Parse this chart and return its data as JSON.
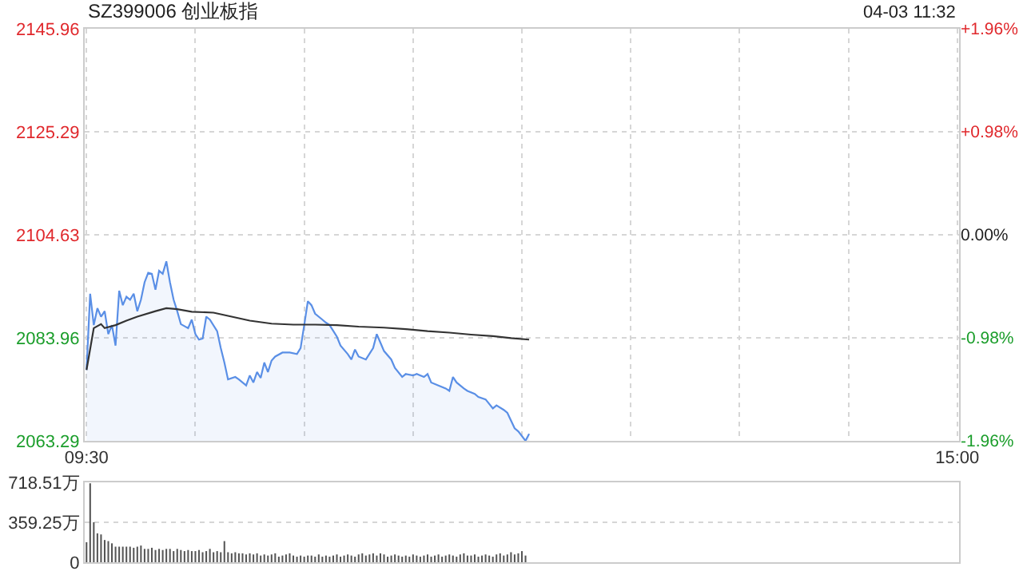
{
  "chart_data": [
    {
      "type": "area",
      "title": "SZ399006 创业板指",
      "annotations": [
        "04-03 11:32"
      ],
      "categories": [
        "09:30",
        null,
        null,
        null,
        null,
        null,
        null,
        null,
        null,
        null,
        null,
        null,
        null,
        null,
        null,
        null,
        null,
        null,
        null,
        null,
        null,
        null,
        null,
        null,
        null,
        null,
        null,
        null,
        null,
        null,
        null,
        null,
        null,
        null,
        null,
        null,
        null,
        null,
        null,
        null,
        null,
        null,
        null,
        null,
        null,
        null,
        null,
        null,
        null,
        null,
        null,
        null,
        null,
        null,
        null,
        null,
        null,
        null,
        null,
        null,
        null,
        null,
        null,
        null,
        null,
        null,
        null,
        null,
        null,
        null,
        null,
        null,
        null,
        null,
        null,
        null,
        null,
        null,
        null,
        null,
        null,
        null,
        null,
        null,
        null,
        null,
        null,
        null,
        null,
        null,
        null,
        null,
        null,
        null,
        null,
        null,
        null,
        null,
        null,
        null,
        null,
        null,
        null,
        null,
        null,
        null,
        null,
        null,
        null,
        null,
        null,
        null,
        null,
        null,
        null,
        null,
        null,
        null,
        null,
        null,
        null,
        null,
        null,
        null,
        null,
        null,
        null,
        null,
        null,
        null,
        null,
        null,
        null,
        null,
        null,
        null,
        null,
        null,
        null,
        null,
        null,
        null,
        null,
        null,
        null,
        null,
        null,
        null,
        null,
        null,
        null,
        null,
        null,
        null,
        null,
        null,
        null,
        null,
        null,
        null,
        null,
        null,
        null,
        null,
        null,
        null,
        null,
        null,
        null,
        null,
        null,
        null,
        null,
        null,
        null,
        null,
        null,
        null,
        null,
        null,
        null,
        null,
        null,
        null,
        null,
        null,
        null,
        null,
        null,
        null,
        null,
        null,
        null,
        null,
        null,
        null,
        null,
        null,
        null,
        null,
        null,
        null,
        null,
        null,
        null,
        null,
        null,
        null,
        null,
        null,
        null,
        null,
        null,
        null,
        null,
        null,
        null,
        null,
        null,
        null,
        null,
        null,
        null,
        null,
        null,
        null,
        null,
        null,
        null,
        null,
        null,
        null,
        null,
        null,
        null,
        null,
        null,
        null,
        null,
        null,
        "15:00"
      ],
      "series": [
        {
          "color": "#5a8fe6",
          "values": [
            2077.5,
            2092.8,
            2086.5,
            2089.9,
            2088.2,
            2089.3,
            2084.7,
            2086.5,
            2082.4,
            2093.4,
            2090.5,
            2092.2,
            2091.6,
            2092.8,
            2089.3,
            2091.6,
            2095.1,
            2097.0,
            2096.8,
            2093.6,
            2097.4,
            2096.8,
            2099.3,
            2095.1,
            2091.6,
            2089.3,
            2086.7,
            null,
            2085.9,
            2087.6,
            2084.7,
            2083.6,
            2083.8,
            2088.2,
            2087.6,
            null,
            2085.3,
            2081.9,
            2079.0,
            2075.6,
            null,
            2076.1,
            2075.6,
            null,
            2074.4,
            2076.4,
            2075.0,
            2077.1,
            2075.9,
            2079.0,
            2077.1,
            2079.4,
            2080.2,
            null,
            2081.0,
            null,
            2081.0,
            null,
            2080.7,
            2081.9,
            2086.5,
            2091.3,
            2090.5,
            2088.8,
            null,
            2087.6,
            2087.0,
            2086.5,
            null,
            2084.2,
            2082.4,
            null,
            2080.7,
            2079.6,
            2081.6,
            2080.2,
            null,
            2079.6,
            null,
            2081.9,
            2084.7,
            2083.0,
            2081.3,
            null,
            2079.6,
            2077.9,
            null,
            2076.1,
            2076.7,
            null,
            2076.4,
            2076.7,
            null,
            2076.1,
            2076.7,
            2075.0,
            null,
            2074.4,
            null,
            2073.8,
            2073.3,
            2076.1,
            2075.0,
            null,
            2073.8,
            2073.3,
            null,
            2072.7,
            2072.1,
            null,
            2071.6,
            null,
            2069.8,
            2070.4,
            null,
            2069.5,
            2068.9,
            null,
            2065.8,
            2065.2,
            null,
            2063.3,
            2064.7,
            null,
            null,
            null,
            null,
            null,
            null,
            null,
            null,
            null,
            null,
            null,
            null,
            null,
            null,
            null,
            null,
            null,
            null,
            null,
            null,
            null,
            null,
            null,
            null,
            null,
            null,
            null,
            null,
            null,
            null,
            null,
            null,
            null,
            null,
            null,
            null,
            null,
            null,
            null,
            null,
            null,
            null,
            null,
            null,
            null,
            null,
            null,
            null,
            null,
            null,
            null,
            null,
            null,
            null,
            null,
            null,
            null,
            null,
            null,
            null,
            null,
            null,
            null,
            null,
            null,
            null,
            null,
            null,
            null,
            null,
            null,
            null,
            null,
            null,
            null,
            null,
            null,
            null,
            null,
            null,
            null,
            null,
            null,
            null,
            null,
            null,
            null,
            null,
            null,
            null,
            null,
            null,
            null,
            null,
            null,
            null,
            null,
            null,
            null,
            null,
            null,
            null,
            null,
            null,
            null,
            null,
            null,
            null,
            null,
            null,
            null,
            null,
            null,
            null,
            null,
            null,
            null,
            null
          ]
        },
        {
          "type": "line",
          "color": "#333333",
          "values": [
            2077.5,
            null,
            2085.9,
            null,
            2086.7,
            2085.9,
            null,
            null,
            2086.5,
            null,
            null,
            2087.4,
            null,
            null,
            2088.2,
            null,
            null,
            null,
            null,
            2089.3,
            null,
            null,
            2089.9,
            null,
            null,
            2089.7,
            null,
            null,
            null,
            2089.2,
            null,
            null,
            null,
            null,
            null,
            2089.0,
            null,
            null,
            null,
            null,
            2088.2,
            null,
            null,
            null,
            null,
            2087.4,
            null,
            null,
            null,
            null,
            null,
            2086.8,
            null,
            null,
            null,
            null,
            null,
            2086.6,
            null,
            null,
            null,
            null,
            null,
            2086.6,
            null,
            null,
            null,
            null,
            null,
            2086.5,
            null,
            null,
            null,
            null,
            null,
            2086.2,
            null,
            null,
            null,
            null,
            null,
            null,
            2086.0,
            null,
            null,
            null,
            null,
            null,
            2085.7,
            null,
            null,
            null,
            null,
            null,
            2085.3,
            null,
            null,
            null,
            null,
            null,
            2085.0,
            null,
            null,
            null,
            null,
            null,
            2084.6,
            null,
            null,
            null,
            null,
            null,
            2084.3,
            null,
            null,
            null,
            null,
            2083.9,
            null,
            null,
            null,
            null,
            2083.6,
            null,
            null,
            null,
            null,
            null,
            null,
            null,
            null,
            null,
            null,
            null,
            null,
            null,
            null,
            null,
            null,
            null,
            null,
            null,
            null,
            null,
            null,
            null,
            null,
            null,
            null,
            null,
            null,
            null,
            null,
            null,
            null,
            null,
            null,
            null,
            null,
            null,
            null,
            null,
            null,
            null,
            null,
            null,
            null,
            null,
            null,
            null,
            null,
            null,
            null,
            null,
            null,
            null,
            null,
            null,
            null,
            null,
            null,
            null,
            null,
            null,
            null,
            null,
            null,
            null,
            null,
            null,
            null,
            null,
            null,
            null,
            null,
            null,
            null,
            null,
            null,
            null,
            null,
            null,
            null,
            null,
            null,
            null,
            null,
            null,
            null,
            null,
            null,
            null,
            null,
            null,
            null,
            null,
            null,
            null,
            null,
            null,
            null,
            null,
            null,
            null,
            null,
            null,
            null,
            null,
            null,
            null,
            null,
            null,
            null,
            null,
            null,
            null,
            null,
            null,
            null,
            null,
            null
          ]
        }
      ],
      "ylim": [
        2063.29,
        2145.96
      ],
      "yticks": [
        2063.29,
        2083.96,
        2104.63,
        2125.29,
        2145.96
      ],
      "y2lim": [
        -1.96,
        1.96
      ],
      "y2ticks": [
        {
          "value": -1.96,
          "label": "-1.96%"
        },
        {
          "value": -0.98,
          "label": "-0.98%"
        },
        {
          "value": 0,
          "label": "0.00%"
        },
        {
          "value": 0.98,
          "label": "+0.98%"
        },
        {
          "value": 1.96,
          "label": "+1.96%"
        }
      ],
      "grid": true,
      "line_style": "solid"
    },
    {
      "type": "bar",
      "tick_labels": "y",
      "color": "#555555",
      "categories": [
        null,
        null,
        null,
        null,
        null,
        null,
        null,
        null,
        null,
        null,
        null,
        null,
        null,
        null,
        null,
        null,
        null,
        null,
        null,
        null,
        null,
        null,
        null,
        null,
        null,
        null,
        null,
        null,
        null,
        null,
        null,
        null,
        null,
        null,
        null,
        null,
        null,
        null,
        null,
        null,
        null,
        null,
        null,
        null,
        null,
        null,
        null,
        null,
        null,
        null,
        null,
        null,
        null,
        null,
        null,
        null,
        null,
        null,
        null,
        null,
        null,
        null,
        null,
        null,
        null,
        null,
        null,
        null,
        null,
        null,
        null,
        null,
        null,
        null,
        null,
        null,
        null,
        null,
        null,
        null,
        null,
        null,
        null,
        null,
        null,
        null,
        null,
        null,
        null,
        null,
        null,
        null,
        null,
        null,
        null,
        null,
        null,
        null,
        null,
        null,
        null,
        null,
        null,
        null,
        null,
        null,
        null,
        null,
        null,
        null,
        null,
        null,
        null,
        null,
        null,
        null,
        null,
        null,
        null,
        null,
        null,
        null,
        null,
        null,
        null,
        null,
        null,
        null,
        null,
        null,
        null,
        null,
        null,
        null,
        null,
        null,
        null,
        null,
        null,
        null,
        null,
        null,
        null,
        null,
        null,
        null,
        null,
        null,
        null,
        null,
        null,
        null,
        null,
        null,
        null,
        null,
        null,
        null,
        null,
        null,
        null,
        null,
        null,
        null,
        null,
        null,
        null,
        null,
        null,
        null,
        null,
        null,
        null,
        null,
        null,
        null,
        null,
        null,
        null,
        null,
        null,
        null,
        null,
        null,
        null,
        null,
        null,
        null,
        null,
        null,
        null,
        null,
        null,
        null,
        null,
        null,
        null,
        null,
        null,
        null,
        null,
        null,
        null,
        null,
        null,
        null,
        null,
        null,
        null,
        null,
        null,
        null,
        null,
        null,
        null,
        null,
        null,
        null,
        null,
        null,
        null,
        null,
        null,
        null,
        null,
        null,
        null,
        null,
        null,
        null,
        null,
        null,
        null,
        null,
        null,
        null,
        null,
        null,
        null,
        null,
        null
      ],
      "values": [
        180,
        710,
        360,
        260,
        250,
        200,
        190,
        170,
        140,
        140,
        140,
        140,
        140,
        130,
        140,
        150,
        120,
        120,
        130,
        110,
        120,
        110,
        120,
        120,
        100,
        120,
        110,
        100,
        110,
        100,
        100,
        110,
        90,
        100,
        120,
        90,
        100,
        90,
        190,
        90,
        80,
        90,
        80,
        80,
        70,
        80,
        70,
        80,
        60,
        70,
        60,
        70,
        80,
        50,
        60,
        70,
        80,
        60,
        50,
        60,
        50,
        60,
        60,
        50,
        70,
        50,
        60,
        50,
        60,
        70,
        50,
        60,
        70,
        60,
        50,
        70,
        80,
        60,
        70,
        80,
        60,
        80,
        70,
        50,
        60,
        70,
        60,
        50,
        60,
        50,
        70,
        60,
        50,
        60,
        70,
        50,
        60,
        70,
        50,
        60,
        70,
        60,
        50,
        70,
        80,
        60,
        60,
        70,
        50,
        60,
        70,
        60,
        50,
        70,
        80,
        60,
        70,
        90,
        70,
        80,
        100,
        60,
        null,
        null,
        null,
        null,
        null,
        null,
        null,
        null,
        null,
        null,
        null,
        null,
        null,
        null,
        null,
        null,
        null,
        null,
        null,
        null,
        null,
        null,
        null,
        null,
        null,
        null,
        null,
        null,
        null,
        null,
        null,
        null,
        null,
        null,
        null,
        null,
        null,
        null,
        null,
        null,
        null,
        null,
        null,
        null,
        null,
        null,
        null,
        null,
        null,
        null,
        null,
        null,
        null,
        null,
        null,
        null,
        null,
        null,
        null,
        null,
        null,
        null,
        null,
        null,
        null,
        null,
        null,
        null,
        null,
        null,
        null,
        null,
        null,
        null,
        null,
        null,
        null,
        null,
        null,
        null,
        null,
        null,
        null,
        null,
        null,
        null,
        null,
        null,
        null,
        null,
        null,
        null,
        null,
        null,
        null,
        null,
        null,
        null,
        null,
        null,
        null,
        null,
        null,
        null,
        null,
        null,
        null,
        null,
        null,
        null,
        null,
        null,
        null,
        null,
        null,
        null,
        null,
        null,
        null
      ],
      "ylim": [
        0,
        718.51
      ],
      "yticks": [
        0,
        {
          "value": 359.25,
          "label": "359.25万"
        },
        {
          "value": 718.51,
          "label": "718.51万"
        }
      ],
      "grid": "y"
    }
  ]
}
